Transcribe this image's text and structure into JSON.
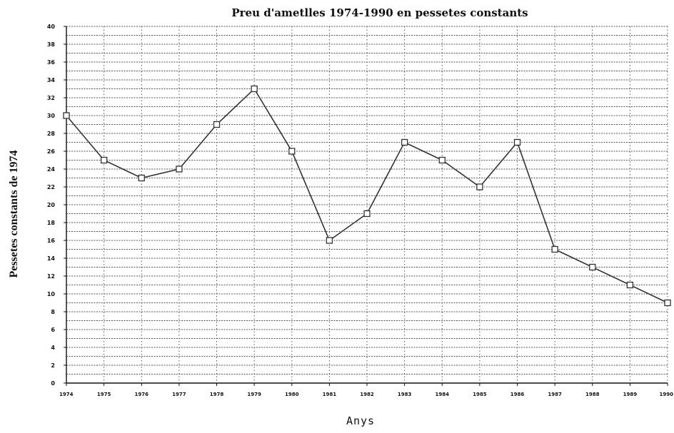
{
  "chart_data": {
    "type": "line",
    "title": "Preu d'ametlles 1974-1990 en pessetes constants",
    "xlabel": "Anys",
    "ylabel": "Pessetes constants de 1974",
    "ylim": [
      0,
      40
    ],
    "y_ticks": [
      "0",
      "2",
      "4",
      "6",
      "8",
      "10",
      "12",
      "14",
      "16",
      "18",
      "20",
      "22",
      "24",
      "26",
      "28",
      "30",
      "32",
      "34",
      "36",
      "38",
      "40"
    ],
    "categories": [
      "1974",
      "1975",
      "1976",
      "1977",
      "1978",
      "1979",
      "1980",
      "1981",
      "1982",
      "1983",
      "1984",
      "1985",
      "1986",
      "1987",
      "1988",
      "1989",
      "1990"
    ],
    "values": [
      30,
      25,
      23,
      24,
      29,
      33,
      26,
      16,
      19,
      27,
      25,
      22,
      27,
      15,
      13,
      11,
      9
    ],
    "grid": true,
    "marker": "square",
    "colors": {
      "line": "#333333",
      "grid": "#555555",
      "marker_fill": "#ffffff"
    }
  }
}
